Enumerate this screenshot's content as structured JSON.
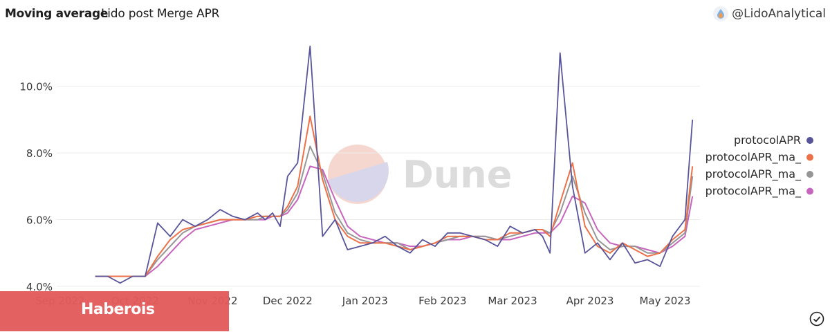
{
  "header": {
    "title": "Moving average",
    "subtitle": "Lido post Merge APR",
    "author": "@LidoAnalytical",
    "author_icon": "drop-icon"
  },
  "watermark": {
    "text": "Dune"
  },
  "banner": {
    "text": "Haberois",
    "color": "#e35b5b"
  },
  "status_icon": "check-circle-icon",
  "chart_data": {
    "type": "line",
    "ylim": [
      4.0,
      11.3
    ],
    "y_ticks": [
      "4.0%",
      "6.0%",
      "8.0%",
      "10.0%"
    ],
    "y_tick_values": [
      4.0,
      6.0,
      8.0,
      10.0
    ],
    "x_ticks": [
      "Sep 2022",
      "Oct 2022",
      "Nov 2022",
      "Dec 2022",
      "Jan 2023",
      "Feb 2023",
      "Mar 2023",
      "Apr 2023",
      "May 2023"
    ],
    "grid": true,
    "legend_position": "right",
    "x": [
      "2022-09-15",
      "2022-09-20",
      "2022-09-25",
      "2022-09-30",
      "2022-10-05",
      "2022-10-10",
      "2022-10-15",
      "2022-10-20",
      "2022-10-25",
      "2022-10-30",
      "2022-11-04",
      "2022-11-09",
      "2022-11-14",
      "2022-11-19",
      "2022-11-22",
      "2022-11-25",
      "2022-11-28",
      "2022-12-01",
      "2022-12-05",
      "2022-12-10",
      "2022-12-15",
      "2022-12-20",
      "2022-12-25",
      "2022-12-30",
      "2023-01-04",
      "2023-01-09",
      "2023-01-14",
      "2023-01-19",
      "2023-01-24",
      "2023-01-29",
      "2023-02-03",
      "2023-02-08",
      "2023-02-13",
      "2023-02-18",
      "2023-02-23",
      "2023-02-28",
      "2023-03-05",
      "2023-03-10",
      "2023-03-13",
      "2023-03-16",
      "2023-03-20",
      "2023-03-25",
      "2023-03-30",
      "2023-04-04",
      "2023-04-09",
      "2023-04-14",
      "2023-04-19",
      "2023-04-24",
      "2023-04-29",
      "2023-05-04",
      "2023-05-09",
      "2023-05-12"
    ],
    "series": [
      {
        "name": "protocolAPR",
        "color": "#58549a",
        "values": [
          4.3,
          4.3,
          4.1,
          4.3,
          4.3,
          5.9,
          5.5,
          6.0,
          5.8,
          6.0,
          6.3,
          6.1,
          6.0,
          6.2,
          6.0,
          6.2,
          5.8,
          7.3,
          7.7,
          11.2,
          5.5,
          6.0,
          5.1,
          5.2,
          5.3,
          5.5,
          5.2,
          5.0,
          5.4,
          5.2,
          5.6,
          5.6,
          5.5,
          5.4,
          5.2,
          5.8,
          5.6,
          5.7,
          5.5,
          5.0,
          11.0,
          7.0,
          5.0,
          5.3,
          4.8,
          5.3,
          4.7,
          4.8,
          4.6,
          5.5,
          6.0,
          9.0
        ]
      },
      {
        "name": "protocolAPR_ma_",
        "color": "#ec7148",
        "values": [
          4.3,
          4.3,
          4.3,
          4.3,
          4.3,
          4.9,
          5.4,
          5.7,
          5.8,
          5.9,
          6.0,
          6.0,
          6.0,
          6.1,
          6.1,
          6.1,
          6.1,
          6.4,
          7.0,
          9.1,
          7.2,
          6.0,
          5.5,
          5.3,
          5.3,
          5.3,
          5.2,
          5.1,
          5.2,
          5.3,
          5.5,
          5.5,
          5.5,
          5.4,
          5.4,
          5.6,
          5.6,
          5.7,
          5.7,
          5.5,
          6.5,
          7.7,
          5.8,
          5.2,
          5.0,
          5.3,
          5.1,
          4.9,
          5.0,
          5.4,
          5.7,
          7.6
        ]
      },
      {
        "name": "protocolAPR_ma_",
        "color": "#969696",
        "values": [
          4.3,
          4.3,
          4.3,
          4.3,
          4.3,
          4.8,
          5.2,
          5.6,
          5.8,
          5.9,
          6.0,
          6.0,
          6.0,
          6.0,
          6.1,
          6.1,
          6.1,
          6.3,
          6.8,
          8.2,
          7.4,
          6.2,
          5.6,
          5.4,
          5.3,
          5.3,
          5.3,
          5.1,
          5.2,
          5.3,
          5.4,
          5.5,
          5.5,
          5.5,
          5.4,
          5.5,
          5.6,
          5.7,
          5.7,
          5.6,
          6.2,
          7.3,
          6.2,
          5.4,
          5.1,
          5.2,
          5.2,
          5.0,
          5.0,
          5.3,
          5.6,
          7.3
        ]
      },
      {
        "name": "protocolAPR_ma_",
        "color": "#c764bd",
        "values": [
          4.3,
          4.3,
          4.3,
          4.3,
          4.3,
          4.6,
          5.0,
          5.4,
          5.7,
          5.8,
          5.9,
          6.0,
          6.0,
          6.0,
          6.0,
          6.1,
          6.1,
          6.2,
          6.6,
          7.6,
          7.5,
          6.6,
          5.8,
          5.5,
          5.4,
          5.3,
          5.3,
          5.2,
          5.2,
          5.3,
          5.4,
          5.4,
          5.5,
          5.5,
          5.4,
          5.4,
          5.5,
          5.6,
          5.6,
          5.6,
          5.9,
          6.7,
          6.5,
          5.7,
          5.3,
          5.2,
          5.2,
          5.1,
          5.0,
          5.2,
          5.5,
          6.7
        ]
      }
    ]
  }
}
